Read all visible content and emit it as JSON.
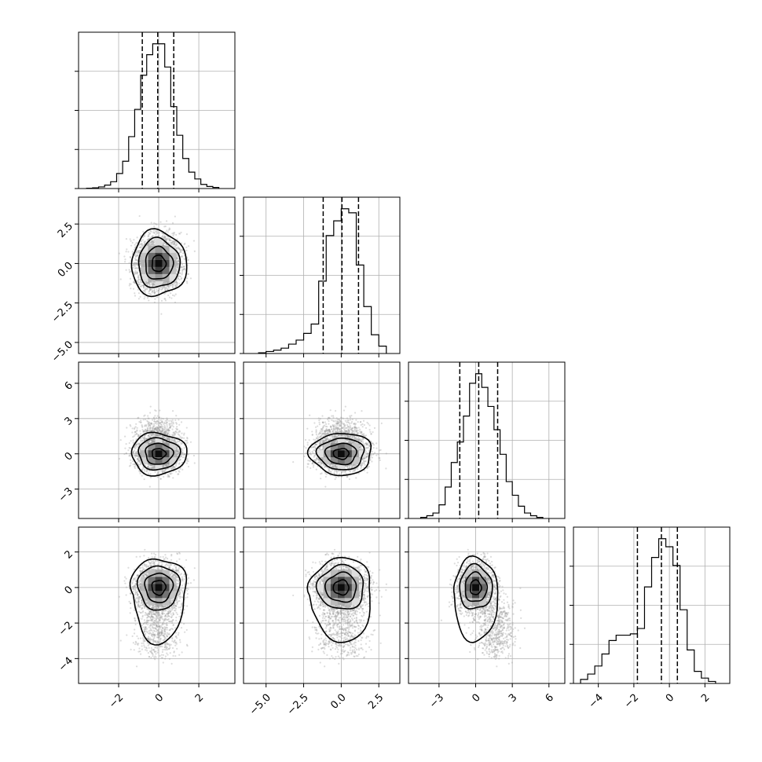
{
  "chart_data": {
    "type": "corner",
    "parameters": [
      {
        "xlim": [
          -4.0,
          3.8
        ],
        "xticks": [
          -2,
          0,
          2
        ],
        "ylim": [
          -5.7,
          4.2
        ],
        "yticks": [
          -5.0,
          -2.5,
          0.0,
          2.5
        ],
        "std": 1.0
      },
      {
        "xlim": [
          -6.5,
          3.9
        ],
        "xticks": [
          -5.0,
          -2.5,
          0.0,
          2.5
        ],
        "ylim": [
          -5.5,
          7.8
        ],
        "yticks": [
          -3,
          0,
          3,
          6
        ],
        "std": 1.5
      },
      {
        "xlim": [
          -5.5,
          7.3
        ],
        "xticks": [
          -3,
          0,
          3,
          6
        ],
        "ylim": [
          -5.4,
          3.4
        ],
        "yticks": [
          -4,
          -2,
          0,
          2
        ],
        "std": 1.3
      },
      {
        "xlim": [
          -5.4,
          3.4
        ],
        "xticks": [
          -4,
          -2,
          0,
          2
        ],
        "std": 1.2
      }
    ],
    "tick_labels": [
      {
        "x": [
          "−2",
          "0",
          "2"
        ],
        "y": [
          "−5.0",
          "−2.5",
          "0.0",
          "2.5"
        ]
      },
      {
        "x": [
          "−5.0",
          "−2.5",
          "0.0",
          "2.5"
        ],
        "y": [
          "−3",
          "0",
          "3",
          "6"
        ]
      },
      {
        "x": [
          "−3",
          "0",
          "3",
          "6"
        ],
        "y": [
          "−4",
          "−2",
          "0",
          "2"
        ]
      },
      {
        "x": [
          "−4",
          "−2",
          "0",
          "2"
        ]
      }
    ],
    "histograms": [
      {
        "bin_edges": [
          -3.6,
          -3.3,
          -3.0,
          -2.7,
          -2.4,
          -2.1,
          -1.8,
          -1.5,
          -1.2,
          -0.9,
          -0.6,
          -0.3,
          0.0,
          0.3,
          0.6,
          0.9,
          1.2,
          1.5,
          1.8,
          2.1,
          2.4,
          2.7,
          3.0
        ],
        "counts": [
          0.2,
          0.5,
          1.2,
          2.5,
          5,
          11,
          20,
          38,
          58,
          83,
          98,
          106,
          106,
          89,
          60,
          39,
          22,
          12,
          7,
          3,
          1.5,
          0.8
        ],
        "quantiles": [
          -0.82,
          -0.05,
          0.75
        ]
      },
      {
        "bin_edges": [
          -5.5,
          -5.0,
          -4.5,
          -4.0,
          -3.5,
          -3.0,
          -2.5,
          -2.0,
          -1.5,
          -1.0,
          -0.5,
          0.0,
          0.5,
          1.0,
          1.5,
          2.0,
          2.5,
          3.0
        ],
        "counts": [
          0.5,
          1.5,
          2.5,
          4,
          7,
          10,
          15,
          22,
          54,
          88,
          99,
          108,
          105,
          66,
          35,
          14,
          5.5
        ],
        "quantiles": [
          -1.2,
          0.05,
          1.15
        ]
      },
      {
        "bin_edges": [
          -4.5,
          -4.0,
          -3.5,
          -3.0,
          -2.5,
          -2.0,
          -1.5,
          -1.0,
          -0.5,
          0.0,
          0.5,
          1.0,
          1.5,
          2.0,
          2.5,
          3.0,
          3.5,
          4.0,
          4.5,
          5.0,
          5.5
        ],
        "counts": [
          0.8,
          2,
          4,
          10,
          23,
          41,
          56,
          75,
          99,
          106,
          96,
          82,
          65,
          47,
          27,
          17,
          9,
          4,
          2,
          0.8
        ],
        "quantiles": [
          -1.3,
          0.25,
          1.8
        ]
      },
      {
        "bin_edges": [
          -5.0,
          -4.6,
          -4.2,
          -3.8,
          -3.4,
          -3.0,
          -2.6,
          -2.2,
          -1.8,
          -1.4,
          -1.0,
          -0.6,
          -0.2,
          0.2,
          0.6,
          1.0,
          1.4,
          1.8,
          2.2,
          2.6
        ],
        "counts": [
          3,
          7,
          13,
          22,
          32,
          36,
          36,
          37,
          41,
          72,
          94,
          108,
          102,
          88,
          55,
          25,
          9,
          4,
          1.5
        ],
        "quantiles": [
          -1.8,
          -0.45,
          0.45
        ]
      }
    ],
    "contour_levels": [
      0.5,
      1.0,
      1.5,
      2.0
    ],
    "marginal_tail": {
      "param": 3,
      "weight": 0.35,
      "extra_y": [
        -1.4,
        -2.4,
        -3.2
      ]
    }
  },
  "colors": {
    "density_dark": "#000000",
    "density_light": "#ffffff",
    "points": "#9a9a9a",
    "grid": "#b0b0b0"
  }
}
